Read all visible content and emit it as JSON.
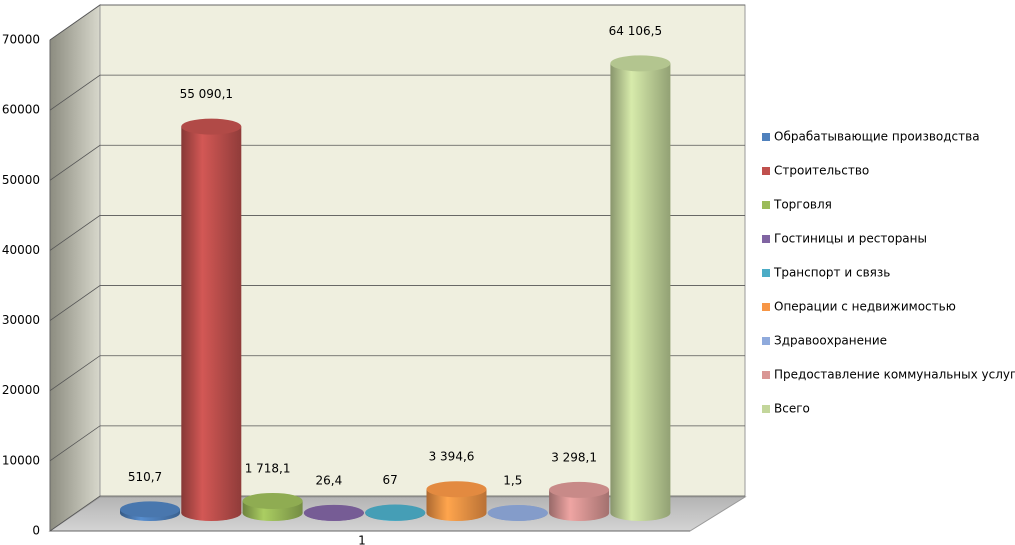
{
  "chart_data": {
    "type": "bar",
    "categories": [
      "1"
    ],
    "ylim": [
      0,
      70000
    ],
    "yticks": [
      0,
      10000,
      20000,
      30000,
      40000,
      50000,
      60000,
      70000
    ],
    "grid": true,
    "legend": "right",
    "series": [
      {
        "name": "Обрабатывающие производства",
        "color": "#4f81bd",
        "values": [
          510.7
        ],
        "value_labels": [
          "510,7"
        ]
      },
      {
        "name": "Строительство",
        "color": "#c0504d",
        "values": [
          55090.1
        ],
        "value_labels": [
          "55 090,1"
        ]
      },
      {
        "name": "Торговля",
        "color": "#9bbb59",
        "values": [
          1718.1
        ],
        "value_labels": [
          "1 718,1"
        ]
      },
      {
        "name": "Гостиницы и рестораны",
        "color": "#8064a2",
        "values": [
          26.4
        ],
        "value_labels": [
          "26,4"
        ]
      },
      {
        "name": "Транспорт и связь",
        "color": "#4bacc6",
        "values": [
          67
        ],
        "value_labels": [
          "67"
        ]
      },
      {
        "name": "Операции с недвижимостью",
        "color": "#f79646",
        "values": [
          3394.6
        ],
        "value_labels": [
          "3 394,6"
        ]
      },
      {
        "name": "Здравоохранение",
        "color": "#8faadc",
        "values": [
          1.5
        ],
        "value_labels": [
          "1,5"
        ]
      },
      {
        "name": "Предоставление коммунальных услуг",
        "color": "#d99694",
        "values": [
          3298.1
        ],
        "value_labels": [
          "3 298,1"
        ]
      },
      {
        "name": "Всего",
        "color": "#c3d69b",
        "values": [
          64106.5
        ],
        "value_labels": [
          "64 106,5"
        ]
      }
    ]
  }
}
